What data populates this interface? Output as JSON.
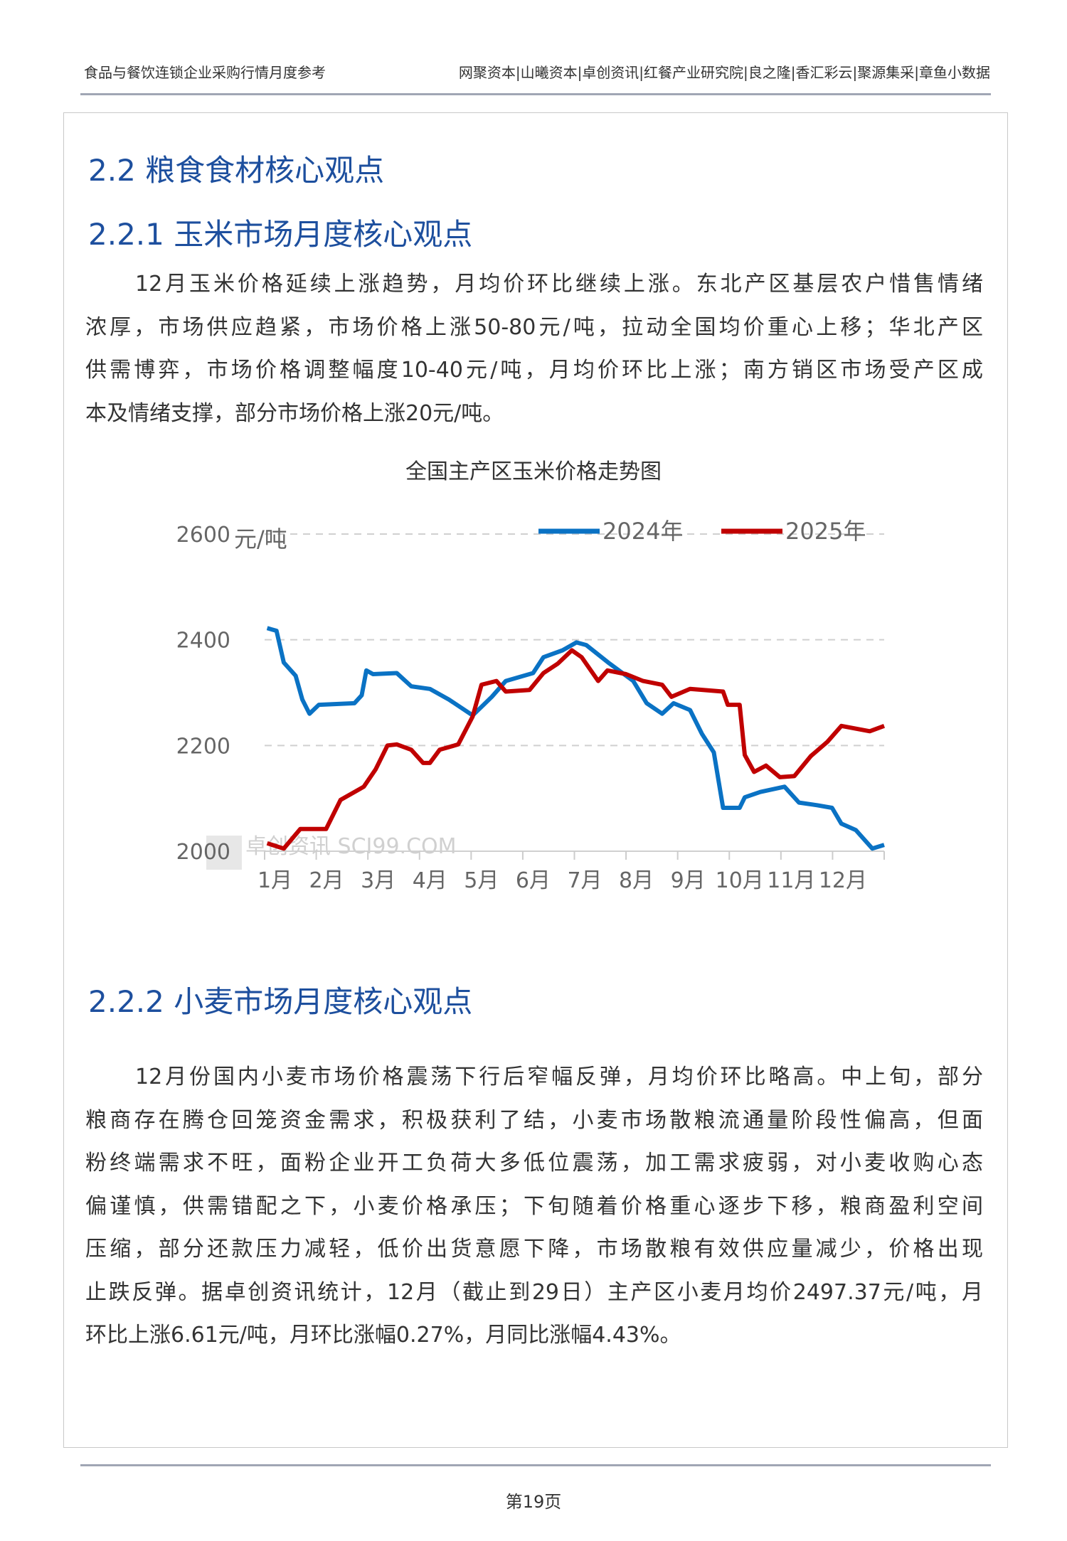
{
  "header": {
    "left": "食品与餐饮连锁企业采购行情月度参考",
    "right": "网聚资本|山曦资本|卓创资讯|红餐产业研究院|良之隆|香汇彩云|聚源集采|章鱼小数据"
  },
  "section": {
    "title": "2.2  粮食食材核心观点"
  },
  "corn": {
    "title": "2.2.1  玉米市场月度核心观点",
    "lines": [
      "12月玉米价格延续上涨趋势，月均价环比继续上涨。东北产区基层农户惜售情绪",
      "浓厚，市场供应趋紧，市场价格上涨50-80元/吨，拉动全国均价重心上移；华北产区",
      "供需博弈，市场价格调整幅度10-40元/吨，月均价环比上涨；南方销区市场受产区成",
      "本及情绪支撑，部分市场价格上涨20元/吨。"
    ]
  },
  "chart_data": {
    "type": "line",
    "title": "全国主产区玉米价格走势图",
    "ylabel": "元/吨",
    "ylim": [
      2000,
      2600
    ],
    "yticks": [
      2000,
      2200,
      2400,
      2600
    ],
    "categories": [
      "1月",
      "2月",
      "3月",
      "4月",
      "5月",
      "6月",
      "7月",
      "8月",
      "9月",
      "10月",
      "11月",
      "12月"
    ],
    "grid": "horizontal-dashed",
    "legend": "top-right",
    "watermark": "卓创资讯 SCI99.COM",
    "series": [
      {
        "name": "2024年",
        "color": "#0a72c4",
        "points": [
          [
            0.05,
            2422
          ],
          [
            0.23,
            2417
          ],
          [
            0.37,
            2357
          ],
          [
            0.6,
            2332
          ],
          [
            0.73,
            2287
          ],
          [
            0.87,
            2260
          ],
          [
            1.05,
            2277
          ],
          [
            1.74,
            2280
          ],
          [
            1.88,
            2295
          ],
          [
            1.97,
            2342
          ],
          [
            2.1,
            2335
          ],
          [
            2.56,
            2337
          ],
          [
            2.84,
            2312
          ],
          [
            3.2,
            2307
          ],
          [
            3.57,
            2287
          ],
          [
            4.03,
            2257
          ],
          [
            4.4,
            2292
          ],
          [
            4.67,
            2322
          ],
          [
            5.2,
            2337
          ],
          [
            5.4,
            2367
          ],
          [
            5.77,
            2380
          ],
          [
            6.04,
            2395
          ],
          [
            6.23,
            2390
          ],
          [
            6.68,
            2355
          ],
          [
            7.14,
            2322
          ],
          [
            7.4,
            2280
          ],
          [
            7.7,
            2260
          ],
          [
            7.92,
            2280
          ],
          [
            8.24,
            2267
          ],
          [
            8.47,
            2222
          ],
          [
            8.7,
            2187
          ],
          [
            8.88,
            2082
          ],
          [
            9.2,
            2082
          ],
          [
            9.3,
            2102
          ],
          [
            9.6,
            2112
          ],
          [
            10.07,
            2122
          ],
          [
            10.35,
            2092
          ],
          [
            10.7,
            2087
          ],
          [
            10.99,
            2082
          ],
          [
            11.17,
            2052
          ],
          [
            11.45,
            2040
          ],
          [
            11.77,
            2005
          ],
          [
            12,
            2012
          ]
        ]
      },
      {
        "name": "2025年",
        "color": "#c00000",
        "points": [
          [
            0.05,
            2015
          ],
          [
            0.37,
            2005
          ],
          [
            0.69,
            2042
          ],
          [
            1.19,
            2042
          ],
          [
            1.47,
            2097
          ],
          [
            1.92,
            2122
          ],
          [
            2.15,
            2155
          ],
          [
            2.38,
            2200
          ],
          [
            2.56,
            2202
          ],
          [
            2.84,
            2192
          ],
          [
            3.07,
            2167
          ],
          [
            3.2,
            2167
          ],
          [
            3.39,
            2192
          ],
          [
            3.57,
            2197
          ],
          [
            3.75,
            2202
          ],
          [
            4.03,
            2255
          ],
          [
            4.2,
            2315
          ],
          [
            4.49,
            2322
          ],
          [
            4.67,
            2302
          ],
          [
            5.13,
            2305
          ],
          [
            5.4,
            2337
          ],
          [
            5.68,
            2355
          ],
          [
            5.95,
            2380
          ],
          [
            6.14,
            2367
          ],
          [
            6.46,
            2322
          ],
          [
            6.64,
            2342
          ],
          [
            7.0,
            2335
          ],
          [
            7.33,
            2322
          ],
          [
            7.7,
            2315
          ],
          [
            7.88,
            2292
          ],
          [
            8.24,
            2307
          ],
          [
            8.88,
            2302
          ],
          [
            8.97,
            2277
          ],
          [
            9.2,
            2277
          ],
          [
            9.3,
            2182
          ],
          [
            9.48,
            2150
          ],
          [
            9.71,
            2162
          ],
          [
            9.98,
            2140
          ],
          [
            10.26,
            2142
          ],
          [
            10.58,
            2180
          ],
          [
            10.9,
            2207
          ],
          [
            11.17,
            2237
          ],
          [
            11.72,
            2227
          ],
          [
            12,
            2237
          ]
        ]
      }
    ]
  },
  "wheat": {
    "title": "2.2.2 小麦市场月度核心观点",
    "lines": [
      "12月份国内小麦市场价格震荡下行后窄幅反弹，月均价环比略高。中上旬，部分",
      "粮商存在腾仓回笼资金需求，积极获利了结，小麦市场散粮流通量阶段性偏高，但面",
      "粉终端需求不旺，面粉企业开工负荷大多低位震荡，加工需求疲弱，对小麦收购心态",
      "偏谨慎，供需错配之下，小麦价格承压；下旬随着价格重心逐步下移，粮商盈利空间",
      "压缩，部分还款压力减轻，低价出货意愿下降，市场散粮有效供应量减少，价格出现",
      "止跌反弹。据卓创资讯统计，12月（截止到29日）主产区小麦月均价2497.37元/吨，月",
      "环比上涨6.61元/吨，月环比涨幅0.27%，月同比涨幅4.43%。"
    ]
  },
  "footer": {
    "page": "第19页"
  }
}
